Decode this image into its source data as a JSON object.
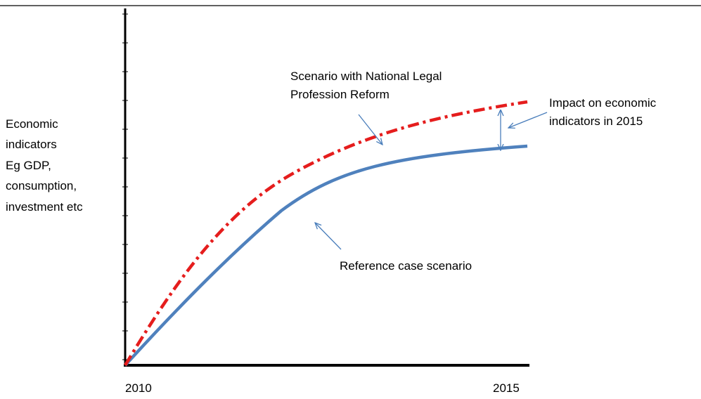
{
  "y_axis_label": [
    "Economic",
    "indicators",
    "Eg GDP,",
    "consumption,",
    "investment etc"
  ],
  "x_axis_labels": [
    "2010",
    "2015"
  ],
  "annotations": {
    "reform_scenario": [
      "Scenario with National Legal",
      "Profession Reform"
    ],
    "impact": [
      "Impact on economic",
      "indicators in 2015"
    ],
    "reference": [
      "Reference case scenario"
    ]
  }
}
